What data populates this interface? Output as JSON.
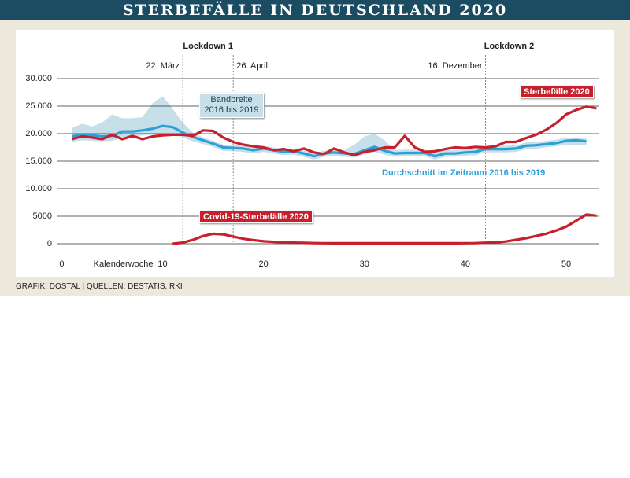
{
  "chart_data": {
    "type": "line",
    "title": "STERBEFÄLLE IN DEUTSCHLAND 2020",
    "source": "GRAFIK: DOSTAL | QUELLEN: DESTATIS, RKI",
    "xlabel": "Kalenderwoche",
    "x": [
      1,
      2,
      3,
      4,
      5,
      6,
      7,
      8,
      9,
      10,
      11,
      12,
      13,
      14,
      15,
      16,
      17,
      18,
      19,
      20,
      21,
      22,
      23,
      24,
      25,
      26,
      27,
      28,
      29,
      30,
      31,
      32,
      33,
      34,
      35,
      36,
      37,
      38,
      39,
      40,
      41,
      42,
      43,
      44,
      45,
      46,
      47,
      48,
      49,
      50,
      51,
      52,
      53
    ],
    "xlim": [
      -0.5,
      53.2
    ],
    "xticks": [
      0,
      10,
      20,
      30,
      40,
      50
    ],
    "ylim": [
      0,
      30000
    ],
    "yticks": [
      0,
      5000,
      {
        "value": 10000,
        "label": "10.000"
      },
      {
        "value": 15000,
        "label": "15.000"
      },
      {
        "value": 20000,
        "label": "20.000"
      },
      {
        "value": 25000,
        "label": "25.000"
      },
      {
        "value": 30000,
        "label": "30.000"
      }
    ],
    "grid": true,
    "lockdowns": [
      {
        "label": "Lockdown 1",
        "start": 12,
        "start_label": "22. März",
        "end": 17,
        "end_label": "26. April"
      },
      {
        "label": "Lockdown 2",
        "start": 42,
        "start_label": "16. Dezember"
      }
    ],
    "series": [
      {
        "name": "Bandbreite 2016 bis 2019",
        "type": "band",
        "color": "#c6dfe8",
        "upper": [
          21000,
          21800,
          21300,
          22000,
          23500,
          22800,
          22800,
          23000,
          25500,
          26800,
          24500,
          22000,
          20200,
          19300,
          18700,
          18000,
          17900,
          17800,
          17500,
          17800,
          17500,
          17200,
          17300,
          16900,
          16500,
          16900,
          17100,
          17000,
          18000,
          19500,
          20000,
          18800,
          17000,
          17100,
          17100,
          17100,
          16500,
          17000,
          17000,
          17200,
          17300,
          17800,
          17800,
          17800,
          17900,
          18400,
          18500,
          18700,
          18900,
          19300,
          19300,
          19100,
          null
        ],
        "lower": [
          18500,
          18800,
          18700,
          18600,
          18700,
          19300,
          19400,
          19700,
          19800,
          20000,
          20000,
          19300,
          18600,
          18100,
          17600,
          16900,
          16800,
          16700,
          16400,
          16700,
          16400,
          16100,
          16200,
          15800,
          15300,
          15800,
          16000,
          15800,
          15700,
          16200,
          16700,
          16200,
          15800,
          15900,
          15900,
          15900,
          15300,
          15800,
          15800,
          16000,
          16100,
          16600,
          16600,
          16600,
          16700,
          17200,
          17300,
          17500,
          17700,
          18000,
          18000,
          18000,
          null
        ]
      },
      {
        "name": "Durchschnitt im Zeitraum 2016 bis 2019",
        "color": "#2b9fd8",
        "values": [
          19500,
          19800,
          19700,
          19500,
          19600,
          20400,
          20400,
          20600,
          20900,
          21400,
          21200,
          20200,
          19400,
          18800,
          18200,
          17500,
          17400,
          17300,
          17000,
          17300,
          17000,
          16700,
          16800,
          16400,
          15900,
          16400,
          16600,
          16400,
          16300,
          17000,
          17600,
          16900,
          16400,
          16500,
          16500,
          16500,
          15900,
          16400,
          16400,
          16600,
          16700,
          17200,
          17200,
          17200,
          17300,
          17800,
          17900,
          18100,
          18300,
          18700,
          18800,
          18600,
          null
        ]
      },
      {
        "name": "Sterbefälle 2020",
        "color": "#c5202b",
        "values": [
          19000,
          19500,
          19300,
          19000,
          19800,
          19000,
          19600,
          19000,
          19500,
          19700,
          19800,
          19800,
          19600,
          20600,
          20500,
          19300,
          18500,
          18000,
          17700,
          17500,
          17000,
          17200,
          16800,
          17300,
          16600,
          16300,
          17300,
          16600,
          16100,
          16700,
          17000,
          17500,
          17500,
          19600,
          17500,
          16700,
          16800,
          17200,
          17500,
          17400,
          17600,
          17500,
          17700,
          18500,
          18500,
          19200,
          19800,
          20700,
          21900,
          23500,
          24300,
          24900,
          24600
        ]
      },
      {
        "name": "Covid-19-Sterbefälle 2020",
        "color": "#c5202b",
        "values": [
          null,
          null,
          null,
          null,
          null,
          null,
          null,
          null,
          null,
          null,
          0,
          200,
          700,
          1400,
          1800,
          1700,
          1300,
          900,
          650,
          450,
          350,
          250,
          200,
          150,
          120,
          100,
          90,
          80,
          80,
          80,
          80,
          80,
          80,
          80,
          80,
          80,
          80,
          80,
          90,
          100,
          120,
          180,
          250,
          400,
          700,
          1000,
          1400,
          1800,
          2400,
          3100,
          4200,
          5300,
          5100
        ]
      }
    ]
  }
}
